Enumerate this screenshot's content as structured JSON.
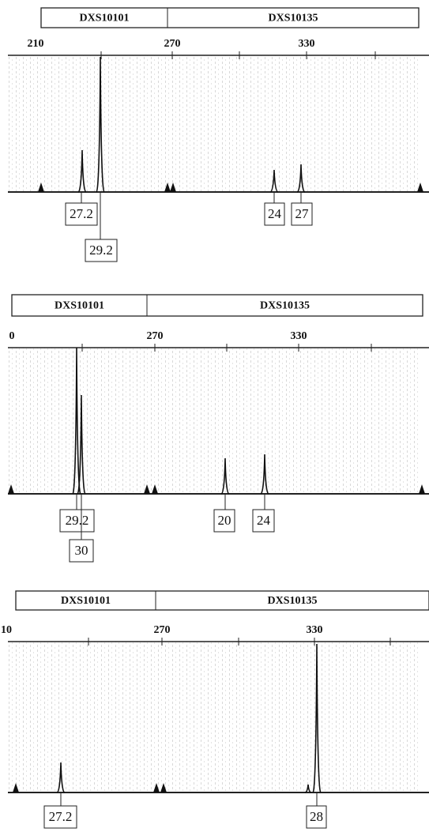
{
  "panels": [
    {
      "loci": [
        "DXS10101",
        "DXS10135"
      ],
      "ruler": [
        "210",
        "270",
        "330"
      ],
      "alleles": [
        "27.2",
        "29.2",
        "24",
        "27"
      ]
    },
    {
      "loci": [
        "DXS10101",
        "DXS10135"
      ],
      "ruler": [
        "0",
        "270",
        "330"
      ],
      "alleles": [
        "29.2",
        "30",
        "20",
        "24"
      ]
    },
    {
      "loci": [
        "DXS10101",
        "DXS10135"
      ],
      "ruler": [
        "10",
        "270",
        "330"
      ],
      "alleles": [
        "27.2",
        "28"
      ]
    }
  ]
}
